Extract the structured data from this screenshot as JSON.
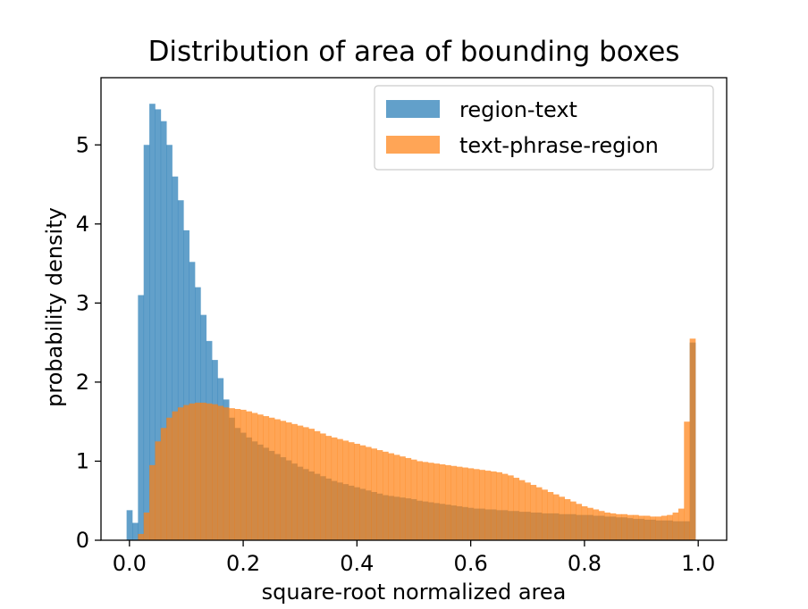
{
  "chart_data": {
    "type": "histogram",
    "title": "Distribution of area of bounding boxes",
    "xlabel": "square-root normalized area",
    "ylabel": "probability density",
    "xlim": [
      -0.05,
      1.05
    ],
    "ylim": [
      0,
      5.85
    ],
    "xticks": [
      0.0,
      0.2,
      0.4,
      0.6,
      0.8,
      1.0
    ],
    "xtick_labels": [
      "0.0",
      "0.2",
      "0.4",
      "0.6",
      "0.8",
      "1.0"
    ],
    "yticks": [
      0,
      1,
      2,
      3,
      4,
      5
    ],
    "ytick_labels": [
      "0",
      "1",
      "2",
      "3",
      "4",
      "5"
    ],
    "grid": false,
    "legend_position": "top-right",
    "bin_start": -0.005,
    "bin_width": 0.01,
    "series": [
      {
        "name": "region-text",
        "color": "#1f77b4",
        "alpha": 0.7,
        "values": [
          0.38,
          0.22,
          3.1,
          5.0,
          5.52,
          5.45,
          5.3,
          5.0,
          4.6,
          4.3,
          3.92,
          3.52,
          3.2,
          2.85,
          2.52,
          2.28,
          2.05,
          1.78,
          1.55,
          1.42,
          1.36,
          1.3,
          1.25,
          1.21,
          1.17,
          1.13,
          1.09,
          1.05,
          1.01,
          0.97,
          0.93,
          0.9,
          0.87,
          0.84,
          0.81,
          0.78,
          0.75,
          0.73,
          0.71,
          0.69,
          0.67,
          0.65,
          0.63,
          0.61,
          0.59,
          0.57,
          0.56,
          0.55,
          0.54,
          0.53,
          0.52,
          0.5,
          0.49,
          0.48,
          0.47,
          0.46,
          0.45,
          0.44,
          0.43,
          0.42,
          0.41,
          0.4,
          0.4,
          0.39,
          0.39,
          0.38,
          0.38,
          0.37,
          0.37,
          0.36,
          0.36,
          0.35,
          0.35,
          0.34,
          0.34,
          0.34,
          0.33,
          0.33,
          0.33,
          0.32,
          0.32,
          0.32,
          0.31,
          0.31,
          0.3,
          0.3,
          0.29,
          0.29,
          0.28,
          0.27,
          0.27,
          0.26,
          0.26,
          0.25,
          0.25,
          0.25,
          0.24,
          0.24,
          0.24,
          2.5
        ]
      },
      {
        "name": "text-phrase-region",
        "color": "#ff7f0e",
        "alpha": 0.7,
        "values": [
          0.0,
          0.0,
          0.08,
          0.35,
          0.95,
          1.25,
          1.42,
          1.55,
          1.63,
          1.68,
          1.71,
          1.73,
          1.74,
          1.74,
          1.73,
          1.72,
          1.7,
          1.68,
          1.67,
          1.66,
          1.65,
          1.63,
          1.61,
          1.59,
          1.57,
          1.55,
          1.53,
          1.51,
          1.49,
          1.47,
          1.45,
          1.43,
          1.41,
          1.38,
          1.35,
          1.32,
          1.3,
          1.28,
          1.26,
          1.24,
          1.22,
          1.2,
          1.18,
          1.16,
          1.14,
          1.12,
          1.1,
          1.08,
          1.06,
          1.04,
          1.02,
          1.0,
          0.99,
          0.98,
          0.97,
          0.96,
          0.95,
          0.94,
          0.93,
          0.92,
          0.91,
          0.9,
          0.89,
          0.88,
          0.87,
          0.86,
          0.84,
          0.82,
          0.79,
          0.76,
          0.73,
          0.7,
          0.67,
          0.64,
          0.61,
          0.58,
          0.55,
          0.52,
          0.49,
          0.46,
          0.43,
          0.41,
          0.39,
          0.37,
          0.35,
          0.34,
          0.33,
          0.33,
          0.32,
          0.32,
          0.31,
          0.31,
          0.3,
          0.3,
          0.31,
          0.32,
          0.35,
          0.4,
          1.5,
          2.55
        ]
      }
    ]
  }
}
